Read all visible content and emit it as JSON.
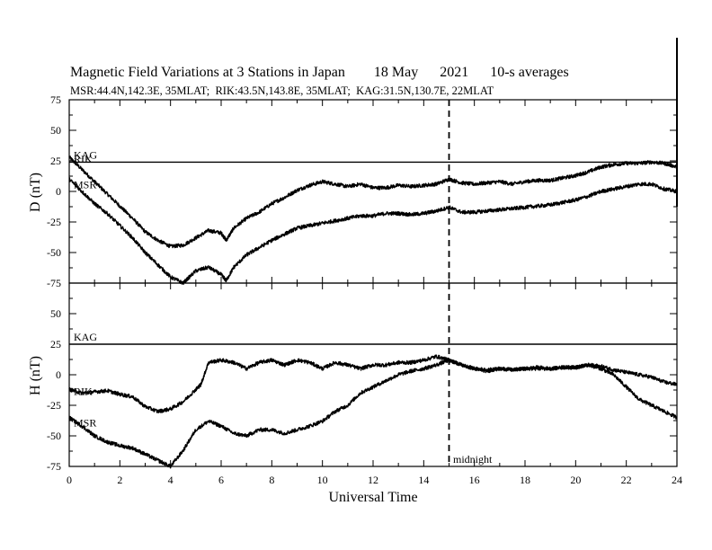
{
  "header": {
    "title": "Magnetic Field Variations at 3 Stations in Japan        18 May      2021      10-s averages",
    "subtitle": "MSR:44.4N,142.3E, 35MLAT;  RIK:43.5N,143.8E, 35MLAT;  KAG:31.5N,130.7E, 22MLAT"
  },
  "chart_data": [
    {
      "type": "line",
      "ylabel": "D (nT)",
      "xlim": [
        0,
        24
      ],
      "ylim": [
        -75,
        75
      ],
      "yticks": [
        75,
        50,
        25,
        0,
        -25,
        -50,
        -75
      ],
      "grid": false,
      "series": [
        {
          "name": "KAG",
          "x": [
            0,
            24
          ],
          "values": [
            24,
            24
          ]
        },
        {
          "name": "RIK",
          "x": [
            0,
            0.5,
            1,
            1.5,
            2,
            2.5,
            3,
            3.5,
            4,
            4.5,
            5,
            5.5,
            6,
            6.2,
            6.5,
            7,
            7.5,
            8,
            8.5,
            9,
            9.5,
            10,
            10.5,
            11,
            11.5,
            12,
            12.5,
            13,
            13.5,
            14,
            14.5,
            15,
            15.5,
            16,
            16.5,
            17,
            17.5,
            18,
            18.5,
            19,
            19.5,
            20,
            20.5,
            21,
            21.5,
            22,
            22.5,
            23,
            23.5,
            24
          ],
          "values": [
            28,
            18,
            8,
            -2,
            -12,
            -22,
            -33,
            -40,
            -45,
            -44,
            -38,
            -32,
            -34,
            -40,
            -30,
            -22,
            -17,
            -10,
            -5,
            1,
            5,
            8,
            6,
            4,
            6,
            3,
            3,
            5,
            4,
            5,
            6,
            10,
            7,
            6,
            7,
            8,
            6,
            8,
            9,
            9,
            11,
            13,
            16,
            20,
            22,
            23,
            23,
            24,
            23,
            20
          ]
        },
        {
          "name": "MSR",
          "x": [
            0,
            0.5,
            1,
            1.5,
            2,
            2.5,
            3,
            3.5,
            4,
            4.5,
            5,
            5.5,
            6,
            6.2,
            6.5,
            7,
            7.5,
            8,
            8.5,
            9,
            9.5,
            10,
            10.5,
            11,
            11.5,
            12,
            12.5,
            13,
            13.5,
            14,
            14.5,
            15,
            15.5,
            16,
            16.5,
            17,
            17.5,
            18,
            18.5,
            19,
            19.5,
            20,
            20.5,
            21,
            21.5,
            22,
            22.5,
            23,
            23.5,
            24
          ],
          "values": [
            10,
            0,
            -10,
            -18,
            -28,
            -38,
            -50,
            -60,
            -70,
            -75,
            -65,
            -62,
            -68,
            -73,
            -62,
            -52,
            -46,
            -40,
            -35,
            -30,
            -28,
            -26,
            -24,
            -22,
            -20,
            -20,
            -18,
            -18,
            -19,
            -18,
            -16,
            -13,
            -17,
            -17,
            -16,
            -15,
            -14,
            -13,
            -12,
            -11,
            -9,
            -7,
            -4,
            0,
            2,
            4,
            6,
            6,
            2,
            0
          ]
        }
      ]
    },
    {
      "type": "line",
      "xlabel": "Universal Time",
      "ylabel": "H (nT)",
      "xlim": [
        0,
        24
      ],
      "ylim": [
        -75,
        75
      ],
      "xticks": [
        0,
        2,
        4,
        6,
        8,
        10,
        12,
        14,
        16,
        18,
        20,
        22,
        24
      ],
      "yticks": [
        75,
        50,
        25,
        0,
        -25,
        -50,
        -75
      ],
      "grid": false,
      "annotation": {
        "text": "midnight",
        "x": 15
      },
      "series": [
        {
          "name": "KAG",
          "x": [
            0,
            24
          ],
          "values": [
            25,
            25
          ]
        },
        {
          "name": "RIK",
          "x": [
            0,
            0.5,
            1,
            1.5,
            2,
            2.5,
            3,
            3.5,
            4,
            4.5,
            5,
            5.2,
            5.5,
            6,
            6.5,
            7,
            7.5,
            8,
            8.5,
            9,
            9.5,
            10,
            10.5,
            11,
            11.5,
            12,
            12.5,
            13,
            13.5,
            14,
            14.5,
            15,
            15.5,
            16,
            16.5,
            17,
            17.5,
            18,
            18.5,
            19,
            19.5,
            20,
            20.5,
            21,
            21.5,
            22,
            22.5,
            23,
            23.5,
            24
          ],
          "values": [
            -12,
            -15,
            -14,
            -13,
            -16,
            -18,
            -26,
            -30,
            -28,
            -22,
            -12,
            -8,
            10,
            12,
            10,
            5,
            10,
            12,
            8,
            12,
            10,
            5,
            10,
            8,
            5,
            8,
            8,
            10,
            10,
            12,
            15,
            12,
            8,
            5,
            3,
            5,
            4,
            5,
            6,
            5,
            6,
            6,
            8,
            7,
            4,
            2,
            0,
            -2,
            -6,
            -8
          ]
        },
        {
          "name": "MSR",
          "x": [
            0,
            0.5,
            1,
            1.5,
            2,
            2.5,
            3,
            3.5,
            4,
            4.5,
            5,
            5.5,
            6,
            6.5,
            7,
            7.5,
            8,
            8.5,
            9,
            9.5,
            10,
            10.5,
            11,
            11.5,
            12,
            12.5,
            13,
            13.5,
            14,
            14.5,
            15,
            15.5,
            16,
            16.5,
            17,
            17.5,
            18,
            18.5,
            19,
            19.5,
            20,
            20.5,
            21,
            21.5,
            22,
            22.5,
            23,
            23.5,
            24
          ],
          "values": [
            -35,
            -42,
            -50,
            -55,
            -58,
            -60,
            -65,
            -70,
            -75,
            -62,
            -45,
            -38,
            -42,
            -48,
            -50,
            -45,
            -45,
            -48,
            -45,
            -42,
            -38,
            -30,
            -25,
            -15,
            -10,
            -5,
            0,
            3,
            5,
            8,
            12,
            8,
            5,
            4,
            5,
            4,
            5,
            5,
            5,
            6,
            6,
            8,
            5,
            0,
            -10,
            -20,
            -25,
            -30,
            -35
          ]
        }
      ]
    }
  ]
}
